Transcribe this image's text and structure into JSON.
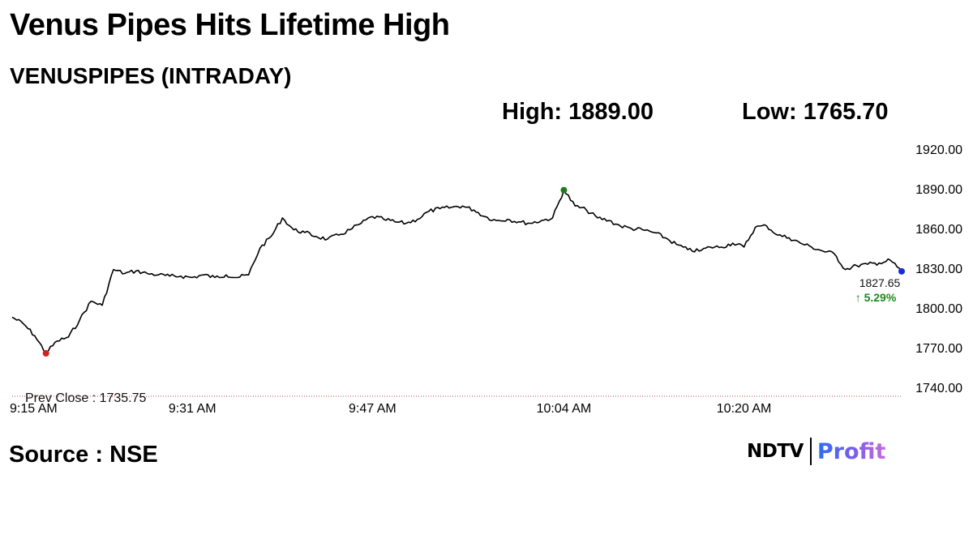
{
  "header": {
    "title": "Venus Pipes Hits Lifetime High",
    "subtitle": "VENUSPIPES (INTRADAY)"
  },
  "stats": {
    "high_label": "High: 1889.00",
    "low_label": "Low: 1765.70"
  },
  "source": "Source : NSE",
  "logo": {
    "brand": "NDTV",
    "product": "Profit"
  },
  "colors": {
    "line": "#000000",
    "high_marker": "#1e7b1e",
    "low_marker": "#d42020",
    "last_marker": "#1a2bd6",
    "change_text": "#1e8a1e",
    "prev_close_line": "#c44d4d"
  },
  "chart_data": {
    "type": "line",
    "title": "VENUSPIPES (INTRADAY)",
    "xlabel": "",
    "ylabel": "",
    "ylim": [
      1740,
      1920
    ],
    "yticks": [
      "1920.00",
      "1890.00",
      "1860.00",
      "1830.00",
      "1800.00",
      "1770.00",
      "1740.00"
    ],
    "xticks": [
      "9:15 AM",
      "9:31 AM",
      "9:47 AM",
      "10:04 AM",
      "10:20 AM"
    ],
    "grid": false,
    "legend": "none",
    "prev_close": 1735.75,
    "prev_close_label": "Prev Close : 1735.75",
    "last_value_label": "1827.65",
    "change_label": "5.29%",
    "change_arrow": "↑",
    "high": {
      "time": "10:04",
      "value": 1889.0
    },
    "low": {
      "time": "9:18",
      "value": 1765.7
    },
    "last": {
      "time": "10:34",
      "value": 1827.65
    },
    "series": [
      {
        "x": [
          "9:15",
          "9:16",
          "9:17",
          "9:18",
          "9:19",
          "9:20",
          "9:21",
          "9:22",
          "9:23",
          "9:24",
          "9:25",
          "9:26",
          "9:27",
          "9:28",
          "9:29",
          "9:30",
          "9:31",
          "9:32",
          "9:33",
          "9:34",
          "9:35",
          "9:36",
          "9:37",
          "9:38",
          "9:39",
          "9:40",
          "9:41",
          "9:42",
          "9:43",
          "9:44",
          "9:45",
          "9:46",
          "9:47",
          "9:48",
          "9:49",
          "9:50",
          "9:51",
          "9:52",
          "9:53",
          "9:54",
          "9:55",
          "9:56",
          "9:57",
          "9:58",
          "9:59",
          "10:00",
          "10:01",
          "10:02",
          "10:03",
          "10:04",
          "10:05",
          "10:06",
          "10:07",
          "10:08",
          "10:09",
          "10:10",
          "10:11",
          "10:12",
          "10:13",
          "10:14",
          "10:15",
          "10:16",
          "10:17",
          "10:18",
          "10:19",
          "10:20",
          "10:21",
          "10:22",
          "10:23",
          "10:24",
          "10:25",
          "10:26",
          "10:27",
          "10:28",
          "10:29",
          "10:30",
          "10:31",
          "10:32",
          "10:33",
          "10:34"
        ],
        "values": [
          1793,
          1788,
          1779,
          1766,
          1775,
          1778,
          1791,
          1805,
          1802,
          1829,
          1826,
          1828,
          1826,
          1825,
          1824,
          1824,
          1823,
          1825,
          1823,
          1825,
          1823,
          1825,
          1845,
          1854,
          1868,
          1859,
          1857,
          1854,
          1852,
          1855,
          1859,
          1864,
          1869,
          1867,
          1865,
          1864,
          1867,
          1873,
          1875,
          1876,
          1877,
          1874,
          1869,
          1866,
          1867,
          1865,
          1864,
          1866,
          1868,
          1889,
          1877,
          1874,
          1868,
          1866,
          1862,
          1860,
          1859,
          1857,
          1853,
          1848,
          1844,
          1843,
          1846,
          1846,
          1849,
          1846,
          1861,
          1862,
          1855,
          1853,
          1849,
          1846,
          1843,
          1841,
          1829,
          1832,
          1833,
          1834,
          1836,
          1827.65
        ]
      }
    ]
  }
}
